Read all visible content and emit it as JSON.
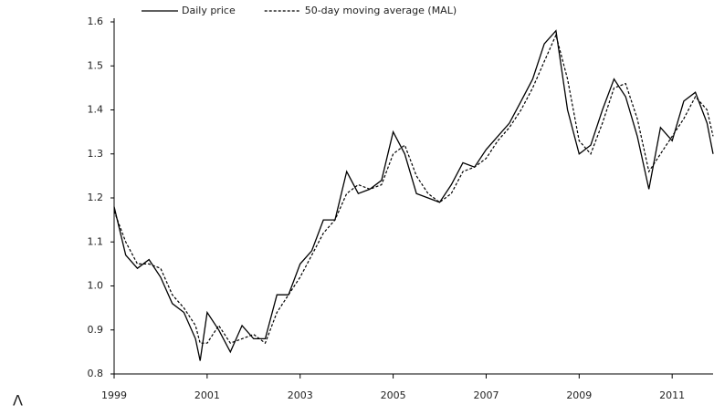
{
  "chart_data": {
    "type": "line",
    "annotations": [
      "Λ"
    ],
    "x": [
      1999.0,
      1999.25,
      1999.5,
      1999.75,
      2000.0,
      2000.25,
      2000.5,
      2000.75,
      2000.85,
      2001.0,
      2001.25,
      2001.5,
      2001.75,
      2002.0,
      2002.25,
      2002.5,
      2002.75,
      2003.0,
      2003.25,
      2003.5,
      2003.75,
      2004.0,
      2004.25,
      2004.5,
      2004.75,
      2005.0,
      2005.25,
      2005.5,
      2005.75,
      2006.0,
      2006.25,
      2006.5,
      2006.75,
      2007.0,
      2007.25,
      2007.5,
      2007.75,
      2008.0,
      2008.25,
      2008.5,
      2008.75,
      2009.0,
      2009.25,
      2009.5,
      2009.75,
      2010.0,
      2010.25,
      2010.5,
      2010.75,
      2011.0,
      2011.25,
      2011.5,
      2011.75,
      2011.88
    ],
    "series": [
      {
        "name": "Daily price",
        "color": "#000000",
        "dash": false,
        "values": [
          1.18,
          1.07,
          1.04,
          1.06,
          1.02,
          0.96,
          0.94,
          0.88,
          0.83,
          0.94,
          0.9,
          0.85,
          0.91,
          0.88,
          0.88,
          0.98,
          0.98,
          1.05,
          1.08,
          1.15,
          1.15,
          1.26,
          1.21,
          1.22,
          1.24,
          1.35,
          1.3,
          1.21,
          1.2,
          1.19,
          1.23,
          1.28,
          1.27,
          1.31,
          1.34,
          1.37,
          1.42,
          1.47,
          1.55,
          1.58,
          1.4,
          1.3,
          1.32,
          1.4,
          1.47,
          1.43,
          1.34,
          1.22,
          1.36,
          1.33,
          1.42,
          1.44,
          1.37,
          1.3
        ]
      },
      {
        "name": "50-day moving average (MAL)",
        "color": "#000000",
        "dash": true,
        "values": [
          1.17,
          1.1,
          1.05,
          1.05,
          1.04,
          0.98,
          0.95,
          0.91,
          0.87,
          0.87,
          0.91,
          0.87,
          0.88,
          0.89,
          0.87,
          0.94,
          0.98,
          1.02,
          1.07,
          1.12,
          1.15,
          1.21,
          1.23,
          1.22,
          1.23,
          1.3,
          1.32,
          1.25,
          1.21,
          1.19,
          1.21,
          1.26,
          1.27,
          1.29,
          1.33,
          1.36,
          1.4,
          1.45,
          1.51,
          1.57,
          1.47,
          1.33,
          1.3,
          1.37,
          1.45,
          1.46,
          1.38,
          1.26,
          1.3,
          1.34,
          1.38,
          1.43,
          1.4,
          1.34
        ]
      }
    ],
    "xlim": [
      1999,
      2011.88
    ],
    "xticks": [
      1999,
      2001,
      2003,
      2005,
      2007,
      2009,
      2011
    ],
    "ylim": [
      0.8,
      1.6
    ],
    "yticks": [
      0.8,
      0.9,
      {
        "value": 1,
        "label": "1.0"
      },
      1.1,
      1.2,
      1.3,
      1.4,
      1.5,
      1.6
    ],
    "grid": false
  }
}
